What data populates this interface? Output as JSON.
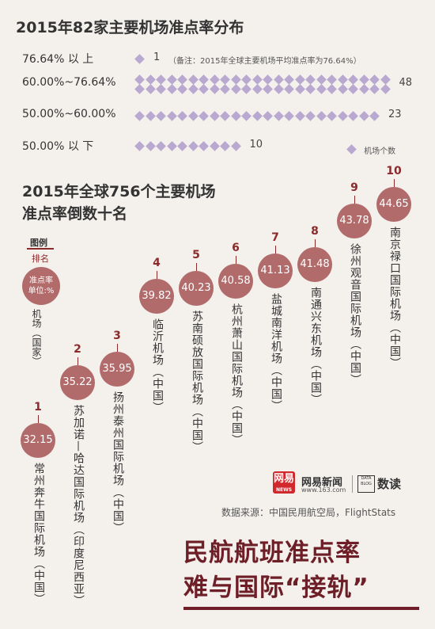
{
  "title": "2015年82家主要机场准点率分布",
  "distribution": {
    "rows": [
      {
        "label": "76.64%  以  上",
        "count": "1"
      },
      {
        "label": "60.00%~76.64%",
        "count": "48"
      },
      {
        "label": "50.00%~60.00%",
        "count": "23"
      },
      {
        "label": "50.00%  以  下",
        "count": "10"
      }
    ],
    "note": "（备注：2015年全球主要机场平均准点率为76.64%）",
    "legend": "机场个数",
    "color": "#b9a9d0"
  },
  "ranking_title_line1": "2015年全球756个主要机场",
  "ranking_title_line2": "准点率倒数十名",
  "legend": {
    "title": "图例",
    "rank": "排名",
    "bubble_line1": "准点率",
    "bubble_line2": "单位:%",
    "name": "机场（国家）"
  },
  "chart_data": [
    {
      "type": "bar",
      "categories": [
        "76.64% 以 上",
        "60.00%~76.64%",
        "50.00%~60.00%",
        "50.00% 以 下"
      ],
      "values": [
        1,
        48,
        23,
        10
      ],
      "title": "2015年82家主要机场准点率分布"
    },
    {
      "type": "scatter",
      "title": "2015年全球756个主要机场准点率倒数十名",
      "items": [
        {
          "rank": "1",
          "value": "32.15",
          "name": "常州奔牛国际机场（中国）"
        },
        {
          "rank": "2",
          "value": "35.22",
          "name": "苏加诺—哈达国际机场（印度尼西亚）"
        },
        {
          "rank": "3",
          "value": "35.95",
          "name": "扬州泰州国际机场（中国）"
        },
        {
          "rank": "4",
          "value": "39.82",
          "name": "临沂机场（中国）"
        },
        {
          "rank": "5",
          "value": "40.23",
          "name": "苏南硕放国际机场（中国）"
        },
        {
          "rank": "6",
          "value": "40.58",
          "name": "杭州萧山国际机场（中国）"
        },
        {
          "rank": "7",
          "value": "41.13",
          "name": "盐城南洋机场（中国）"
        },
        {
          "rank": "8",
          "value": "41.48",
          "name": "南通兴东机场（中国）"
        },
        {
          "rank": "9",
          "value": "43.78",
          "name": "徐州观音国际机场（中国）"
        },
        {
          "rank": "10",
          "value": "44.65",
          "name": "南京禄口国际机场（中国）"
        }
      ]
    }
  ],
  "brand": {
    "logo_text": "网易",
    "logo_sub": "NEWS",
    "name": "网易新闻",
    "url": "www.163.com",
    "data_box": "DATA BLOG",
    "data_label": "数读"
  },
  "source": "数据来源：中国民用航空局，FlightStats",
  "headline_line1": "民航航班准点率",
  "headline_line2": "难与国际“接轨”",
  "colors": {
    "accent": "#8b2a2a",
    "bubble": "#b26b6b",
    "headline": "#6e1e26"
  }
}
